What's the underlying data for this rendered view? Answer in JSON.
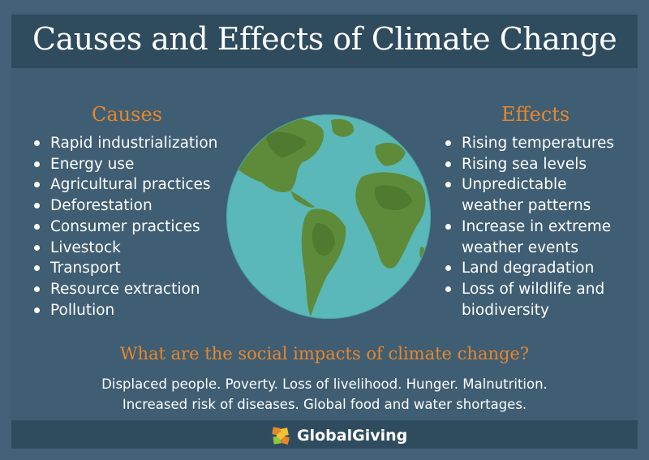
{
  "title": "Causes and Effects of Climate Change",
  "causes": {
    "heading": "Causes",
    "items": [
      "Rapid industrialization",
      "Energy use",
      "Agricultural practices",
      "Deforestation",
      "Consumer practices",
      "Livestock",
      "Transport",
      "Resource extraction",
      "Pollution"
    ]
  },
  "effects": {
    "heading": "Effects",
    "items": [
      "Rising temperatures",
      "Rising sea levels",
      "Unpredictable weather patterns",
      "Increase in extreme weather events",
      "Land degradation",
      "Loss of wildlife and biodiversity"
    ]
  },
  "social": {
    "question": "What are the social impacts of climate change?",
    "line1": "Displaced people. Poverty. Loss of livelihood. Hunger. Malnutrition.",
    "line2": "Increased risk of diseases. Global food and water shortages."
  },
  "footer": {
    "logo_text": "GlobalGiving",
    "icon": "globalgiving-logo-icon"
  },
  "colors": {
    "background": "#436277",
    "bar": "#2f4c5f",
    "accent": "#e8862b",
    "ocean": "#5ab8b8",
    "land": "#5e8b3a"
  }
}
